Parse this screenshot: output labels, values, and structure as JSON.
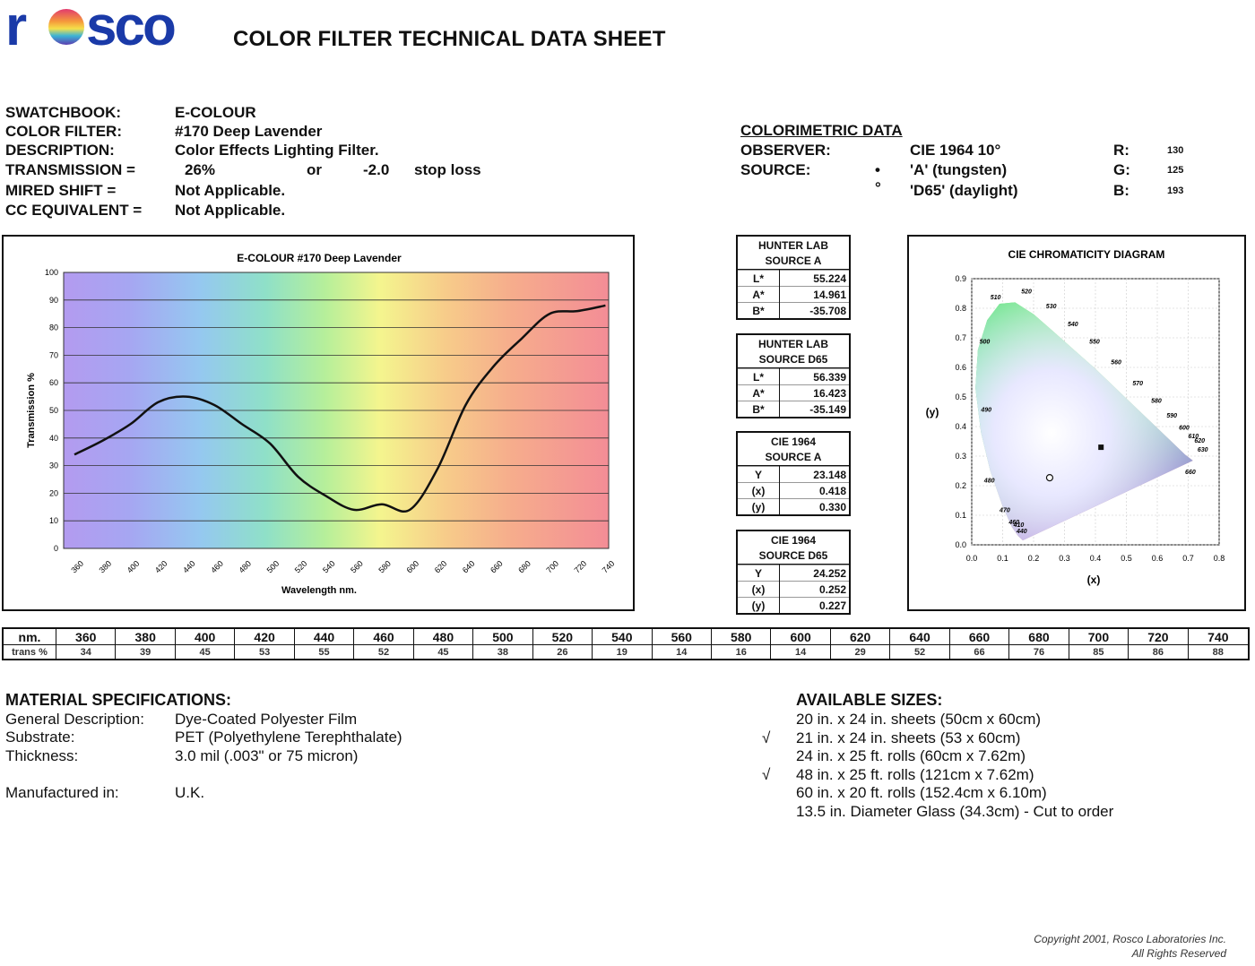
{
  "header": {
    "logo_text": "rosco",
    "title": "COLOR FILTER TECHNICAL DATA SHEET"
  },
  "info": {
    "swatchbook_label": "SWATCHBOOK:",
    "swatchbook_value": "E-COLOUR",
    "filter_label": "COLOR FILTER:",
    "filter_value": "#170 Deep Lavender",
    "description_label": "DESCRIPTION:",
    "description_value": "Color Effects Lighting Filter.",
    "transmission_label": "TRANSMISSION =",
    "transmission_value": "26%",
    "transmission_or": "or",
    "stop_value": "-2.0",
    "stop_label": "stop loss",
    "mired_label": "MIRED SHIFT =",
    "mired_value": "Not Applicable.",
    "cc_label": "CC EQUIVALENT =",
    "cc_value": "Not Applicable."
  },
  "colorimetric": {
    "title": "COLORIMETRIC DATA",
    "observer_label": "OBSERVER:",
    "observer_value": "CIE 1964 10°",
    "source_label": "SOURCE:",
    "source_a_marker": "•",
    "source_a": "'A' (tungsten)",
    "source_d65_marker": "°",
    "source_d65": "'D65' (daylight)",
    "r_label": "R:",
    "r_value": "130",
    "g_label": "G:",
    "g_value": "125",
    "b_label": "B:",
    "b_value": "193"
  },
  "panels": [
    {
      "title1": "HUNTER LAB",
      "title2": "SOURCE A",
      "rows": [
        [
          "L*",
          "55.224"
        ],
        [
          "A*",
          "14.961"
        ],
        [
          "B*",
          "-35.708"
        ]
      ]
    },
    {
      "title1": "HUNTER LAB",
      "title2": "SOURCE D65",
      "rows": [
        [
          "L*",
          "56.339"
        ],
        [
          "A*",
          "16.423"
        ],
        [
          "B*",
          "-35.149"
        ]
      ]
    },
    {
      "title1": "CIE 1964",
      "title2": "SOURCE A",
      "rows": [
        [
          "Y",
          "23.148"
        ],
        [
          "(x)",
          "0.418"
        ],
        [
          "(y)",
          "0.330"
        ]
      ]
    },
    {
      "title1": "CIE 1964",
      "title2": "SOURCE D65",
      "rows": [
        [
          "Y",
          "24.252"
        ],
        [
          "(x)",
          "0.252"
        ],
        [
          "(y)",
          "0.227"
        ]
      ]
    }
  ],
  "chart_data": [
    {
      "type": "line",
      "title": "E-COLOUR #170 Deep Lavender",
      "xlabel": "Wavelength nm.",
      "ylabel": "Transmission %",
      "xlim": [
        360,
        740
      ],
      "ylim": [
        0,
        100
      ],
      "x_ticks": [
        360,
        380,
        400,
        420,
        440,
        460,
        480,
        500,
        520,
        540,
        560,
        580,
        600,
        620,
        640,
        660,
        680,
        700,
        720,
        740
      ],
      "y_ticks": [
        0,
        10,
        20,
        30,
        40,
        50,
        60,
        70,
        80,
        90,
        100
      ],
      "grid": true,
      "x": [
        360,
        380,
        400,
        420,
        440,
        460,
        480,
        500,
        520,
        540,
        560,
        580,
        600,
        620,
        640,
        660,
        680,
        700,
        720,
        740
      ],
      "y": [
        34,
        39,
        45,
        53,
        55,
        52,
        45,
        38,
        26,
        19,
        14,
        16,
        14,
        29,
        52,
        66,
        76,
        85,
        86,
        88
      ]
    },
    {
      "type": "scatter",
      "title": "CIE CHROMATICITY DIAGRAM",
      "xlabel": "(x)",
      "ylabel": "(y)",
      "xlim": [
        0,
        0.8
      ],
      "ylim": [
        0,
        0.9
      ],
      "x_ticks": [
        "0.0",
        "0.1",
        "0.2",
        "0.3",
        "0.4",
        "0.5",
        "0.6",
        "0.7",
        "0.8"
      ],
      "y_ticks": [
        "0.0",
        "0.1",
        "0.2",
        "0.3",
        "0.4",
        "0.5",
        "0.6",
        "0.7",
        "0.8",
        "0.9"
      ],
      "points": [
        {
          "source": "A",
          "marker": "filled",
          "x": 0.418,
          "y": 0.33
        },
        {
          "source": "D65",
          "marker": "open",
          "x": 0.252,
          "y": 0.227
        }
      ],
      "wavelength_labels": [
        "410",
        "440",
        "460",
        "470",
        "480",
        "490",
        "500",
        "510",
        "520",
        "530",
        "540",
        "550",
        "560",
        "570",
        "580",
        "590",
        "600",
        "610",
        "620",
        "630",
        "660"
      ]
    }
  ],
  "data_table": {
    "row1_label": "nm.",
    "row2_label": "trans %",
    "nm": [
      "360",
      "380",
      "400",
      "420",
      "440",
      "460",
      "480",
      "500",
      "520",
      "540",
      "560",
      "580",
      "600",
      "620",
      "640",
      "660",
      "680",
      "700",
      "720",
      "740"
    ],
    "trans": [
      "34",
      "39",
      "45",
      "53",
      "55",
      "52",
      "45",
      "38",
      "26",
      "19",
      "14",
      "16",
      "14",
      "29",
      "52",
      "66",
      "76",
      "85",
      "86",
      "88"
    ]
  },
  "material": {
    "title": "MATERIAL SPECIFICATIONS:",
    "general_label": "General Description:",
    "general_value": "Dye-Coated Polyester Film",
    "substrate_label": "Substrate:",
    "substrate_value": "PET (Polyethylene Terephthalate)",
    "thickness_label": "Thickness:",
    "thickness_value": "3.0 mil (.003\" or 75 micron)",
    "manufactured_label": "Manufactured in:",
    "manufactured_value": "U.K."
  },
  "sizes": {
    "title": "AVAILABLE SIZES:",
    "items": [
      {
        "check": "",
        "text": "20 in. x 24 in. sheets (50cm x 60cm)"
      },
      {
        "check": "√",
        "text": "21 in. x 24 in. sheets (53 x 60cm)"
      },
      {
        "check": "",
        "text": "24 in. x 25 ft. rolls (60cm x 7.62m)"
      },
      {
        "check": "√",
        "text": "48 in. x 25 ft. rolls (121cm x 7.62m)"
      },
      {
        "check": "",
        "text": "60 in. x 20 ft. rolls (152.4cm x 6.10m)"
      },
      {
        "check": "",
        "text": "13.5 in. Diameter Glass (34.3cm) - Cut to order"
      }
    ]
  },
  "footer": {
    "copyright1": "Copyright 2001, Rosco Laboratories Inc.",
    "copyright2": "All Rights Reserved"
  },
  "colors": {
    "brand_blue": "#1a3aa8",
    "text": "#111111"
  }
}
